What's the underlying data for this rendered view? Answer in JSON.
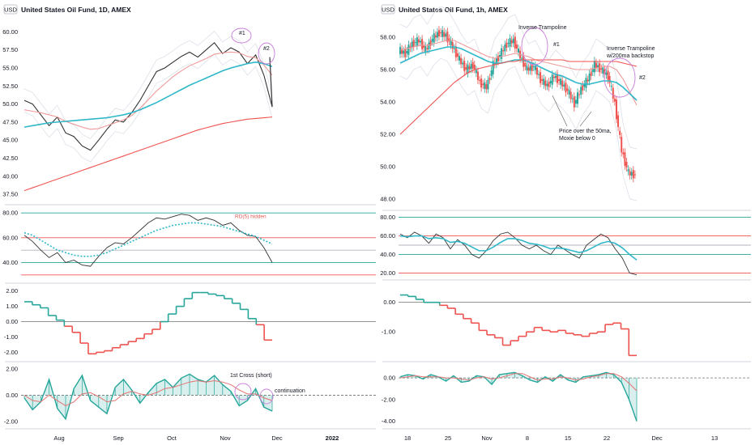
{
  "chart_data": [
    {
      "type": "line",
      "title": "United States Oil Fund, 1D, AMEX",
      "currency_badge": "USD",
      "x_ticks": [
        "Aug",
        "Sep",
        "Oct",
        "Nov",
        "Dec",
        "2022"
      ],
      "panes": [
        {
          "name": "price",
          "ylim": [
            36.5,
            61.5
          ],
          "y_ticks": [
            "60.00",
            "57.50",
            "55.00",
            "52.50",
            "50.00",
            "47.50",
            "45.00",
            "42.50",
            "40.00",
            "37.50"
          ],
          "series": [
            {
              "color": "#333333",
              "values": [
                50.5,
                50.0,
                48.5,
                47.0,
                48.2,
                46.0,
                45.5,
                44.2,
                43.6,
                45.0,
                46.5,
                47.8,
                47.5,
                48.8,
                50.5,
                52.5,
                54.5,
                55.0,
                55.8,
                56.6,
                57.2,
                56.5,
                57.5,
                58.5,
                57.0,
                57.8,
                57.2,
                55.6,
                56.8,
                54.0,
                49.6
              ]
            },
            {
              "color": "#ef9a9a",
              "values": [
                49.2,
                49.0,
                48.8,
                48.5,
                48.2,
                47.6,
                47.2,
                46.8,
                46.5,
                46.6,
                47.0,
                47.4,
                47.8,
                48.4,
                49.4,
                50.6,
                51.8,
                52.8,
                53.8,
                54.6,
                55.3,
                55.8,
                56.3,
                56.9,
                57.1,
                57.2,
                57.1,
                56.6,
                56.4,
                55.4,
                54.0
              ]
            },
            {
              "color": "#2fb8c9",
              "values": [
                46.8,
                47.0,
                47.2,
                47.4,
                47.5,
                47.6,
                47.7,
                47.8,
                47.9,
                48.0,
                48.1,
                48.3,
                48.5,
                48.8,
                49.2,
                49.7,
                50.2,
                50.8,
                51.4,
                52.0,
                52.6,
                53.1,
                53.6,
                54.1,
                54.6,
                55.0,
                55.3,
                55.6,
                55.8,
                55.6,
                55.2
              ]
            },
            {
              "color": "#ef5350",
              "values": [
                38.0,
                38.4,
                38.8,
                39.2,
                39.6,
                40.0,
                40.4,
                40.8,
                41.2,
                41.6,
                42.0,
                42.4,
                42.8,
                43.2,
                43.6,
                44.0,
                44.4,
                44.8,
                45.2,
                45.6,
                46.0,
                46.4,
                46.7,
                47.0,
                47.3,
                47.5,
                47.7,
                47.9,
                48.0,
                48.1,
                48.2
              ]
            }
          ],
          "annotations": [
            "#1",
            "#2"
          ]
        },
        {
          "name": "oscillator",
          "ylim": [
            26,
            84
          ],
          "y_ticks": [
            "80.00",
            "60.00",
            "40.00"
          ],
          "series": [
            {
              "color": "#333333",
              "values": [
                62,
                57,
                50,
                44,
                48,
                40,
                42,
                38,
                37,
                45,
                52,
                56,
                55,
                60,
                66,
                72,
                76,
                75,
                77,
                79,
                78,
                74,
                76,
                74,
                70,
                72,
                66,
                62,
                61,
                52,
                40
              ]
            },
            {
              "color": "#2fb8c9",
              "values": [
                64,
                62,
                58,
                54,
                50,
                48,
                46,
                45,
                45,
                46,
                48,
                51,
                54,
                57,
                60,
                63,
                66,
                68,
                70,
                71,
                72,
                72,
                71,
                70,
                69,
                67,
                65,
                63,
                61,
                58,
                55
              ]
            }
          ],
          "annotations": [
            "RD(5) hidden"
          ]
        },
        {
          "name": "step",
          "ylim": [
            -2.4,
            2.3
          ],
          "y_ticks": [
            "2.00",
            "1.00",
            "0.00",
            "-1.00",
            "-2.00"
          ],
          "values": [
            1.3,
            1.1,
            0.9,
            0.4,
            0.1,
            -0.3,
            -0.7,
            -1.4,
            -2.1,
            -2.0,
            -1.9,
            -1.7,
            -1.5,
            -1.3,
            -1.1,
            -0.8,
            -0.5,
            0.0,
            0.5,
            1.0,
            1.5,
            1.9,
            1.9,
            1.8,
            1.7,
            1.5,
            1.2,
            0.8,
            0.2,
            -0.2,
            -1.2
          ]
        },
        {
          "name": "histogram",
          "ylim": [
            -2.3,
            2.3
          ],
          "y_ticks": [
            "2.00",
            "0.00",
            "-2.00"
          ],
          "values": [
            -0.2,
            -1.1,
            -0.5,
            1.2,
            -1.0,
            -1.8,
            0.5,
            1.5,
            -0.4,
            -0.9,
            -1.4,
            0.6,
            1.2,
            0.4,
            -0.6,
            0.2,
            0.9,
            1.2,
            0.6,
            1.3,
            1.6,
            1.2,
            1.0,
            1.5,
            0.8,
            0.3,
            -0.8,
            -0.4,
            0.5,
            -0.9,
            -1.2
          ],
          "signal": [
            0.0,
            -0.4,
            -0.5,
            0.0,
            -0.4,
            -0.8,
            -0.5,
            0.1,
            0.2,
            -0.1,
            -0.5,
            -0.4,
            0.1,
            0.3,
            0.1,
            0.0,
            0.2,
            0.5,
            0.6,
            0.8,
            1.0,
            1.1,
            1.0,
            1.1,
            1.0,
            0.8,
            0.4,
            0.1,
            0.1,
            -0.2,
            -0.4
          ],
          "annotations": [
            "1st Cross (short)",
            "continuation"
          ]
        }
      ]
    },
    {
      "type": "line",
      "title": "United States Oil Fund, 1h, AMEX",
      "currency_badge": "USD",
      "x_ticks": [
        "18",
        "25",
        "Nov",
        "8",
        "15",
        "22",
        "Dec",
        "13"
      ],
      "panes": [
        {
          "name": "price",
          "ylim": [
            47.5,
            59.0
          ],
          "y_ticks": [
            "58.00",
            "56.00",
            "54.00",
            "52.00",
            "50.00",
            "48.00"
          ],
          "series": [
            {
              "color": "#333333",
              "values": [
                57.2,
                57.0,
                57.6,
                57.8,
                57.2,
                57.9,
                58.3,
                58.1,
                57.4,
                56.6,
                56.0,
                56.3,
                55.2,
                54.9,
                56.3,
                56.9,
                57.6,
                57.8,
                56.8,
                56.0,
                56.2,
                55.4,
                55.0,
                55.6,
                55.2,
                54.7,
                53.9,
                54.8,
                55.4,
                56.3,
                56.0,
                55.6,
                53.9,
                51.0,
                49.6,
                49.5
              ]
            },
            {
              "color": "#ef9a9a",
              "values": [
                57.2,
                57.3,
                57.4,
                57.5,
                57.5,
                57.6,
                57.7,
                57.8,
                57.8,
                57.6,
                57.4,
                57.2,
                57.0,
                56.8,
                56.7,
                56.8,
                56.9,
                57.0,
                56.9,
                56.8,
                56.6,
                56.5,
                56.4,
                56.3,
                56.2,
                56.1,
                56.0,
                56.0,
                56.0,
                56.1,
                56.2,
                56.2,
                56.0,
                55.4,
                54.6,
                53.8
              ]
            },
            {
              "color": "#2fb8c9",
              "values": [
                56.4,
                56.6,
                56.8,
                57.0,
                57.1,
                57.2,
                57.3,
                57.4,
                57.4,
                57.3,
                57.1,
                56.9,
                56.7,
                56.5,
                56.4,
                56.4,
                56.5,
                56.6,
                56.6,
                56.5,
                56.3,
                56.1,
                55.9,
                55.7,
                55.6,
                55.4,
                55.2,
                55.1,
                55.1,
                55.2,
                55.3,
                55.3,
                55.2,
                54.9,
                54.5,
                54.1
              ]
            },
            {
              "color": "#ef5350",
              "values": [
                52.0,
                52.4,
                52.8,
                53.2,
                53.6,
                54.0,
                54.4,
                54.8,
                55.2,
                55.5,
                55.8,
                56.0,
                56.1,
                56.2,
                56.3,
                56.4,
                56.5,
                56.5,
                56.6,
                56.6,
                56.6,
                56.6,
                56.6,
                56.6,
                56.6,
                56.5,
                56.5,
                56.5,
                56.5,
                56.5,
                56.5,
                56.5,
                56.5,
                56.4,
                56.3,
                56.2
              ]
            }
          ],
          "annotations": [
            "Inverse Trampoline",
            "#1",
            "Inverse Trampoline",
            "w/200ma backstop",
            "#2",
            "Price over the 50ma,",
            "Moxie below 0"
          ]
        },
        {
          "name": "oscillator",
          "ylim": [
            16,
            84
          ],
          "y_ticks": [
            "80.00",
            "60.00",
            "40.00",
            "20.00"
          ],
          "series": [
            {
              "color": "#333333",
              "values": [
                62,
                58,
                64,
                60,
                52,
                62,
                58,
                46,
                56,
                50,
                40,
                36,
                44,
                55,
                62,
                64,
                58,
                50,
                46,
                50,
                44,
                40,
                50,
                45,
                40,
                36,
                50,
                56,
                62,
                58,
                46,
                36,
                20,
                18
              ]
            },
            {
              "color": "#2fb8c9",
              "values": [
                60,
                59,
                60,
                60,
                57,
                58,
                57,
                53,
                54,
                52,
                48,
                44,
                44,
                48,
                53,
                57,
                57,
                55,
                52,
                51,
                49,
                46,
                47,
                46,
                44,
                42,
                44,
                48,
                52,
                54,
                52,
                47,
                40,
                34
              ]
            }
          ]
        },
        {
          "name": "step",
          "ylim": [
            -1.9,
            0.65
          ],
          "y_ticks": [
            "0.00",
            "-1.00"
          ],
          "values": [
            0.25,
            0.2,
            0.1,
            0.0,
            0.0,
            -0.1,
            -0.2,
            -0.4,
            -0.55,
            -0.7,
            -0.95,
            -1.1,
            -1.2,
            -1.45,
            -1.3,
            -1.15,
            -1.0,
            -0.85,
            -0.95,
            -1.0,
            -0.95,
            -1.05,
            -1.1,
            -1.15,
            -1.05,
            -1.0,
            -0.75,
            -0.7,
            -0.9,
            -1.8
          ]
        },
        {
          "name": "histogram",
          "ylim": [
            -4.4,
            1.2
          ],
          "y_ticks": [
            "0.00",
            "-2.00",
            "-4.00"
          ],
          "values": [
            0.1,
            0.3,
            0.2,
            -0.1,
            0.3,
            0.1,
            -0.3,
            0.2,
            -0.4,
            -0.3,
            0.2,
            0.1,
            -0.6,
            0.3,
            0.4,
            0.5,
            0.2,
            -0.2,
            -0.4,
            0.1,
            -0.3,
            0.3,
            -0.2,
            -0.4,
            0.1,
            0.2,
            0.3,
            0.5,
            0.3,
            -0.4,
            -2.0,
            -4.0
          ],
          "signal": [
            0.0,
            0.1,
            0.2,
            0.1,
            0.1,
            0.1,
            0.0,
            0.0,
            -0.1,
            -0.2,
            0.0,
            0.1,
            -0.1,
            0.0,
            0.2,
            0.4,
            0.4,
            0.1,
            -0.2,
            -0.1,
            -0.1,
            0.1,
            0.0,
            -0.2,
            -0.1,
            0.1,
            0.2,
            0.4,
            0.4,
            0.1,
            -0.5,
            -1.2
          ]
        }
      ]
    }
  ]
}
